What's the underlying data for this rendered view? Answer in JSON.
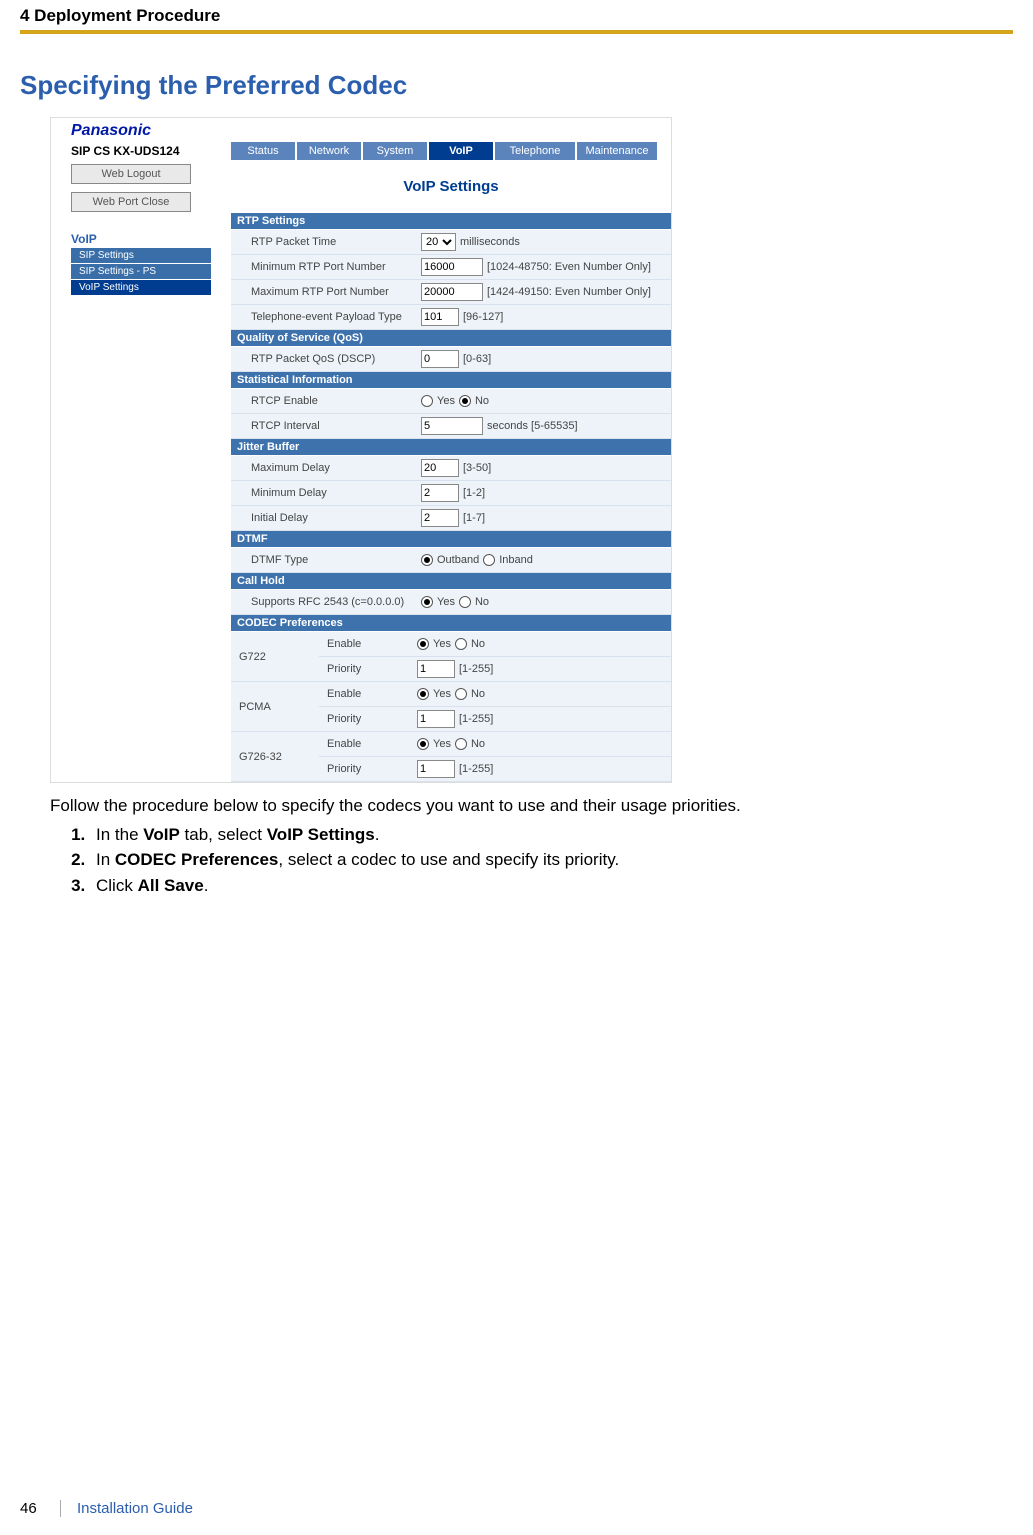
{
  "header": {
    "chapter": "4 Deployment Procedure"
  },
  "section_title": "Specifying the Preferred Codec",
  "screenshot": {
    "brand": "Panasonic",
    "model": "SIP CS KX-UDS124",
    "tabs": [
      "Status",
      "Network",
      "System",
      "VoIP",
      "Telephone",
      "Maintenance"
    ],
    "active_tab": "VoIP",
    "panel_title": "VoIP Settings",
    "sidebar": {
      "buttons": [
        "Web Logout",
        "Web Port Close"
      ],
      "group_label": "VoIP",
      "items": [
        "SIP Settings",
        "SIP Settings - PS",
        "VoIP Settings"
      ],
      "active_item": "VoIP Settings"
    },
    "sections": {
      "rtp": {
        "title": "RTP Settings",
        "rtp_packet_time": {
          "label": "RTP Packet Time",
          "value": "20",
          "unit": "milliseconds"
        },
        "min_port": {
          "label": "Minimum RTP Port Number",
          "value": "16000",
          "hint": "[1024-48750: Even Number Only]"
        },
        "max_port": {
          "label": "Maximum RTP Port Number",
          "value": "20000",
          "hint": "[1424-49150: Even Number Only]"
        },
        "tel_event": {
          "label": "Telephone-event Payload Type",
          "value": "101",
          "hint": "[96-127]"
        }
      },
      "qos": {
        "title": "Quality of Service (QoS)",
        "dscp": {
          "label": "RTP Packet QoS (DSCP)",
          "value": "0",
          "hint": "[0-63]"
        }
      },
      "stat": {
        "title": "Statistical Information",
        "rtcp_enable": {
          "label": "RTCP Enable",
          "yes": "Yes",
          "no": "No",
          "selected": "No"
        },
        "rtcp_interval": {
          "label": "RTCP Interval",
          "value": "5",
          "hint": "seconds [5-65535]"
        }
      },
      "jitter": {
        "title": "Jitter Buffer",
        "max": {
          "label": "Maximum Delay",
          "value": "20",
          "hint": "[3-50]"
        },
        "min": {
          "label": "Minimum Delay",
          "value": "2",
          "hint": "[1-2]"
        },
        "init": {
          "label": "Initial Delay",
          "value": "2",
          "hint": "[1-7]"
        }
      },
      "dtmf": {
        "title": "DTMF",
        "type": {
          "label": "DTMF Type",
          "outband": "Outband",
          "inband": "Inband",
          "selected": "Outband"
        }
      },
      "hold": {
        "title": "Call Hold",
        "rfc": {
          "label": "Supports RFC 2543 (c=0.0.0.0)",
          "yes": "Yes",
          "no": "No",
          "selected": "Yes"
        }
      },
      "codec": {
        "title": "CODEC Preferences",
        "enable_label": "Enable",
        "priority_label": "Priority",
        "priority_hint": "[1-255]",
        "yes": "Yes",
        "no": "No",
        "items": [
          {
            "name": "G722",
            "enable": "Yes",
            "priority": "1"
          },
          {
            "name": "PCMA",
            "enable": "Yes",
            "priority": "1"
          },
          {
            "name": "G726-32",
            "enable": "Yes",
            "priority": "1"
          }
        ]
      }
    }
  },
  "prose": "Follow the procedure below to specify the codecs you want to use and their usage priorities.",
  "steps": [
    {
      "pre": "In the ",
      "b1": "VoIP",
      "mid": " tab, select ",
      "b2": "VoIP Settings",
      "post": "."
    },
    {
      "pre": "In ",
      "b1": "CODEC Preferences",
      "mid": ", select a codec to use and specify its priority.",
      "b2": "",
      "post": ""
    },
    {
      "pre": "Click ",
      "b1": "All Save",
      "mid": ".",
      "b2": "",
      "post": ""
    }
  ],
  "footer": {
    "page": "46",
    "book": "Installation Guide"
  }
}
